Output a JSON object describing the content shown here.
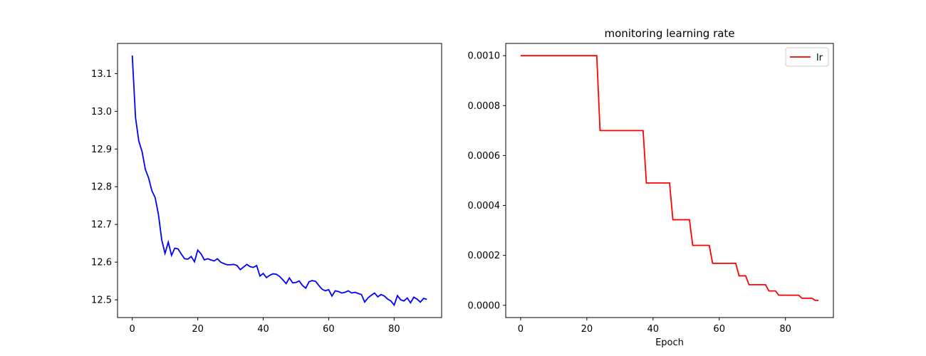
{
  "chart_data": [
    {
      "type": "line",
      "title": "",
      "xlabel": "",
      "ylabel": "",
      "xlim": [
        -4.5,
        94.5
      ],
      "ylim": [
        12.453,
        13.18
      ],
      "xticks": [
        0,
        20,
        40,
        60,
        80
      ],
      "yticks": [
        12.5,
        12.6,
        12.7,
        12.8,
        12.9,
        13.0,
        13.1
      ],
      "ytick_labels": [
        "12.5",
        "12.6",
        "12.7",
        "12.8",
        "12.9",
        "13.0",
        "13.1"
      ],
      "grid": false,
      "series": [
        {
          "color": "#0000ff",
          "x": [
            0,
            1,
            2,
            3,
            4,
            5,
            6,
            7,
            8,
            9,
            10,
            11,
            12,
            13,
            14,
            15,
            16,
            17,
            18,
            19,
            20,
            21,
            22,
            23,
            24,
            25,
            26,
            27,
            28,
            29,
            30,
            31,
            32,
            33,
            34,
            35,
            36,
            37,
            38,
            39,
            40,
            41,
            42,
            43,
            44,
            45,
            46,
            47,
            48,
            49,
            50,
            51,
            52,
            53,
            54,
            55,
            56,
            57,
            58,
            59,
            60,
            61,
            62,
            63,
            64,
            65,
            66,
            67,
            68,
            69,
            70,
            71,
            72,
            73,
            74,
            75,
            76,
            77,
            78,
            79,
            80,
            81,
            82,
            83,
            84,
            85,
            86,
            87,
            88,
            89,
            90
          ],
          "y": [
            13.148,
            12.983,
            12.921,
            12.893,
            12.846,
            12.823,
            12.789,
            12.771,
            12.726,
            12.659,
            12.623,
            12.653,
            12.618,
            12.637,
            12.635,
            12.621,
            12.609,
            12.608,
            12.615,
            12.601,
            12.632,
            12.622,
            12.606,
            12.609,
            12.606,
            12.603,
            12.609,
            12.6,
            12.596,
            12.593,
            12.593,
            12.594,
            12.591,
            12.58,
            12.587,
            12.594,
            12.588,
            12.586,
            12.591,
            12.563,
            12.57,
            12.559,
            12.565,
            12.569,
            12.568,
            12.562,
            12.553,
            12.543,
            12.558,
            12.545,
            12.546,
            12.55,
            12.538,
            12.531,
            12.548,
            12.551,
            12.549,
            12.538,
            12.528,
            12.524,
            12.527,
            12.51,
            12.524,
            12.522,
            12.518,
            12.52,
            12.524,
            12.518,
            12.52,
            12.517,
            12.514,
            12.494,
            12.505,
            12.512,
            12.518,
            12.508,
            12.514,
            12.51,
            12.502,
            12.497,
            12.486,
            12.511,
            12.5,
            12.497,
            12.505,
            12.492,
            12.507,
            12.502,
            12.494,
            12.504,
            12.501
          ]
        }
      ]
    },
    {
      "type": "line",
      "title": "monitoring learning rate",
      "xlabel": "Epoch",
      "ylabel": "",
      "xlim": [
        -4.5,
        94.5
      ],
      "ylim": [
        -4.91e-05,
        0.0010491
      ],
      "xticks": [
        0,
        20,
        40,
        60,
        80
      ],
      "yticks": [
        0.0,
        0.0002,
        0.0004,
        0.0006,
        0.0008,
        0.001
      ],
      "ytick_labels": [
        "0.0000",
        "0.0002",
        "0.0004",
        "0.0006",
        "0.0008",
        "0.0010"
      ],
      "grid": false,
      "legend": "top-right",
      "series": [
        {
          "name": "lr",
          "color": "#ff0000",
          "x": [
            0,
            23,
            24,
            37,
            38,
            45,
            46,
            51,
            52,
            57,
            58,
            65,
            66,
            68,
            69,
            74,
            75,
            77,
            78,
            80,
            81,
            84,
            85,
            88,
            89,
            90
          ],
          "y": [
            0.001,
            0.001,
            0.0007,
            0.0007,
            0.00049,
            0.00049,
            0.000343,
            0.000343,
            0.00024,
            0.00024,
            0.000168,
            0.000168,
            0.000118,
            0.000118,
            8.24e-05,
            8.24e-05,
            5.76e-05,
            5.76e-05,
            4.04e-05,
            4.04e-05,
            4.04e-05,
            4.04e-05,
            2.82e-05,
            2.82e-05,
            1.98e-05,
            1.98e-05
          ]
        }
      ]
    }
  ]
}
